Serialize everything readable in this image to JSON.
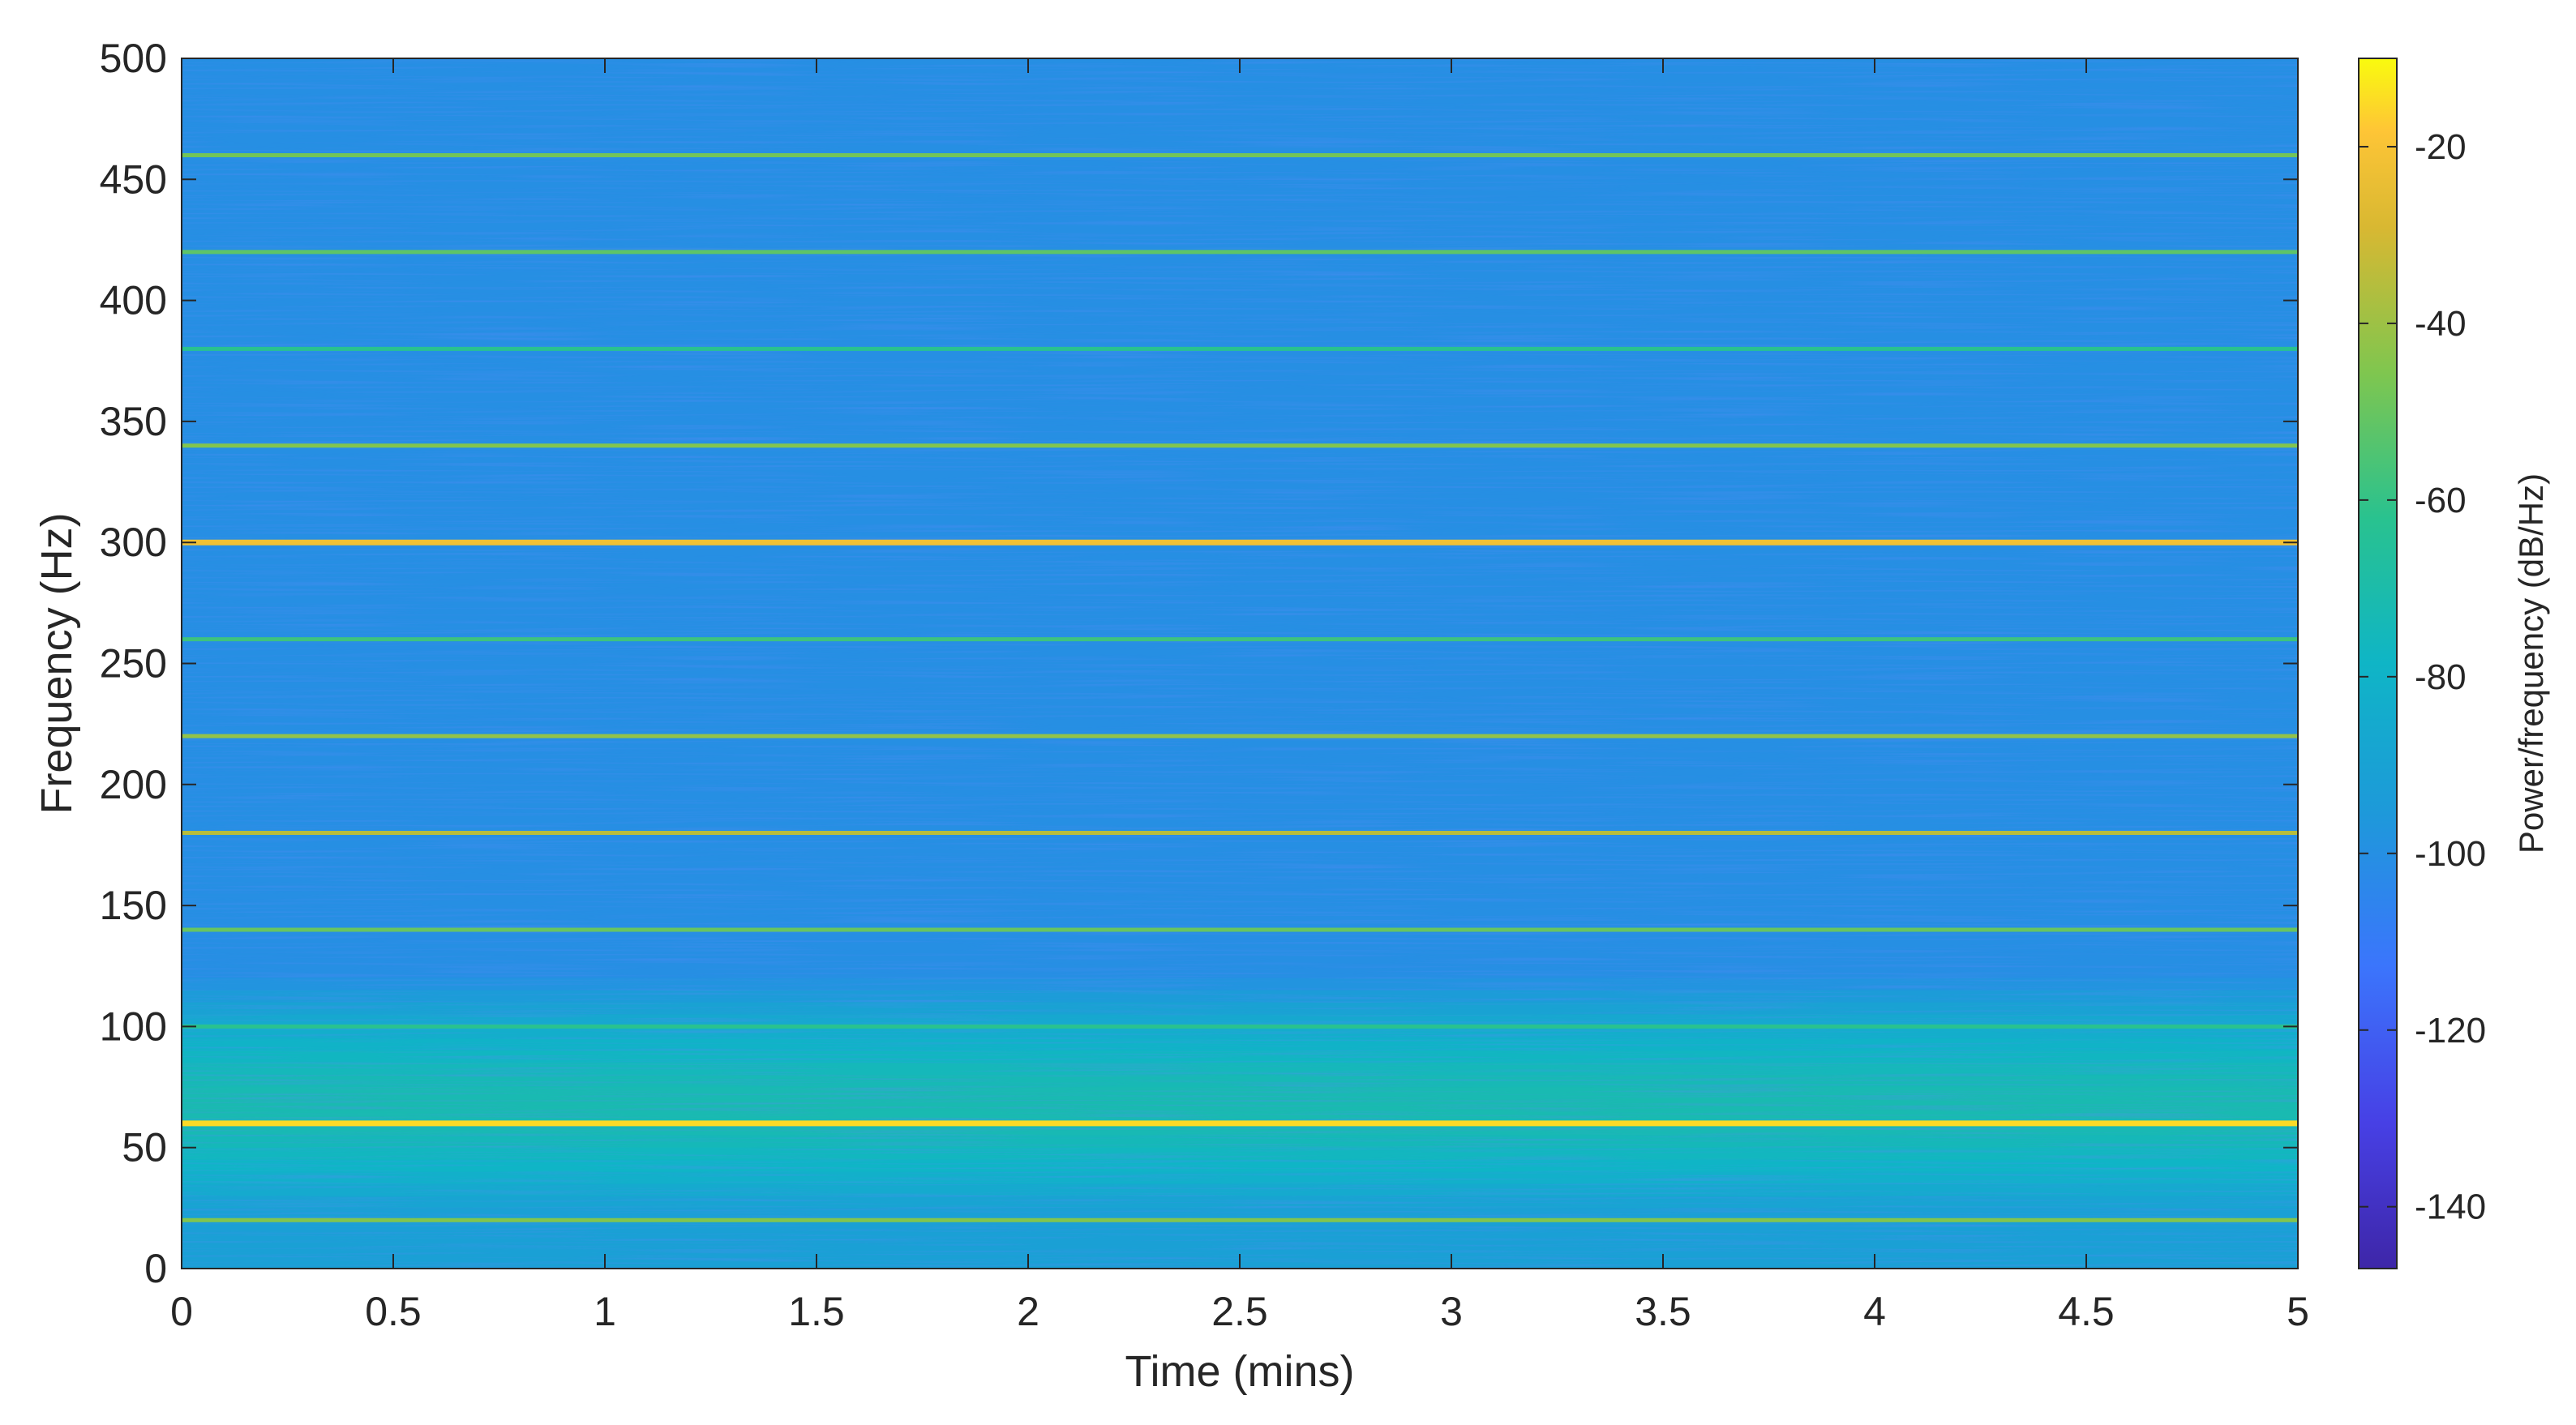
{
  "chart_data": {
    "type": "heatmap",
    "xlabel": "Time (mins)",
    "ylabel": "Frequency (Hz)",
    "xlim": [
      0,
      5
    ],
    "ylim": [
      0,
      500
    ],
    "xticks": [
      0,
      0.5,
      1,
      1.5,
      2,
      2.5,
      3,
      3.5,
      4,
      4.5,
      5
    ],
    "xtick_labels": [
      "0",
      "0.5",
      "1",
      "1.5",
      "2",
      "2.5",
      "3",
      "3.5",
      "4",
      "4.5",
      "5"
    ],
    "yticks": [
      0,
      50,
      100,
      150,
      200,
      250,
      300,
      350,
      400,
      450,
      500
    ],
    "ytick_labels": [
      "0",
      "50",
      "100",
      "150",
      "200",
      "250",
      "300",
      "350",
      "400",
      "450",
      "500"
    ],
    "colormap": "parula",
    "colorbar": {
      "label": "Power/frequency (dB/Hz)",
      "clim": [
        -147,
        -10
      ],
      "ticks": [
        -20,
        -40,
        -60,
        -80,
        -100,
        -120,
        -140
      ],
      "tick_labels": [
        "-20",
        "-40",
        "-60",
        "-80",
        "-100",
        "-120",
        "-140"
      ]
    },
    "background_level_db": -100,
    "low_frequency_band": {
      "from_hz": 0,
      "to_hz": 120,
      "level_db": -72
    },
    "harmonic_lines": [
      {
        "frequency_hz": 20,
        "level_db": -45
      },
      {
        "frequency_hz": 60,
        "level_db": -15
      },
      {
        "frequency_hz": 100,
        "level_db": -62
      },
      {
        "frequency_hz": 140,
        "level_db": -50
      },
      {
        "frequency_hz": 180,
        "level_db": -35
      },
      {
        "frequency_hz": 220,
        "level_db": -42
      },
      {
        "frequency_hz": 260,
        "level_db": -58
      },
      {
        "frequency_hz": 300,
        "level_db": -22
      },
      {
        "frequency_hz": 340,
        "level_db": -45
      },
      {
        "frequency_hz": 380,
        "level_db": -62
      },
      {
        "frequency_hz": 420,
        "level_db": -52
      },
      {
        "frequency_hz": 460,
        "level_db": -48
      }
    ]
  }
}
